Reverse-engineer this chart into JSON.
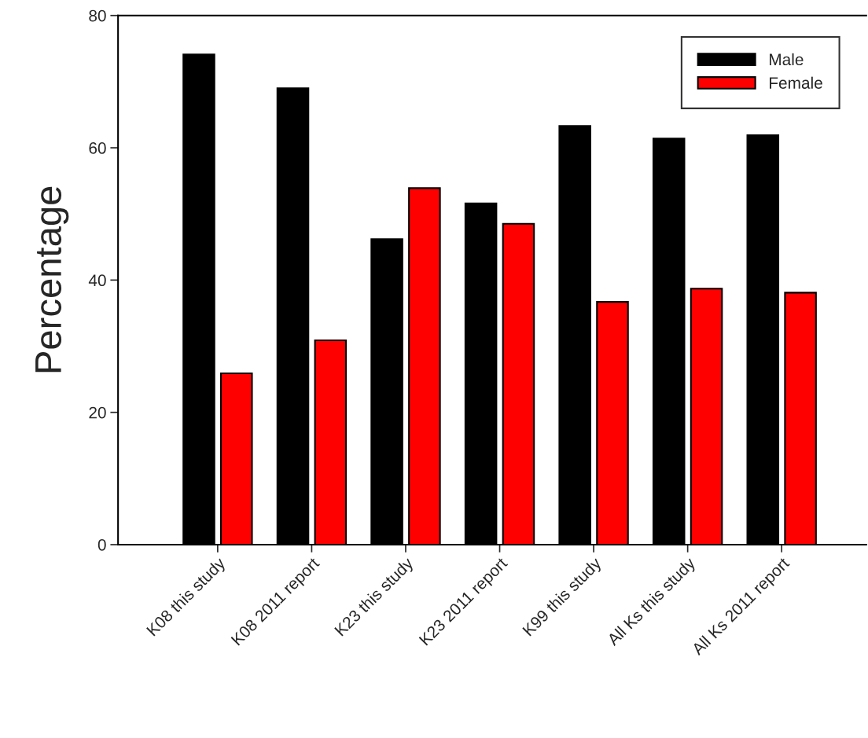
{
  "chart_data": {
    "type": "bar",
    "ylabel": "Percentage",
    "categories": [
      "K08 this study",
      "K08 2011 report",
      "K23 this study",
      "K23 2011 report",
      "K99 this study",
      "All Ks this study",
      "All Ks 2011 report"
    ],
    "series": [
      {
        "name": "Male",
        "color": "#000000",
        "values": [
          74.1,
          69.0,
          46.2,
          51.6,
          63.3,
          61.4,
          61.9
        ]
      },
      {
        "name": "Female",
        "color": "#ff0000",
        "values": [
          25.9,
          30.9,
          53.9,
          48.5,
          36.7,
          38.7,
          38.1
        ]
      }
    ],
    "ylim": [
      0,
      80
    ],
    "yticks": [
      0,
      20,
      40,
      60,
      80
    ],
    "grid": false,
    "legend": "top right"
  }
}
